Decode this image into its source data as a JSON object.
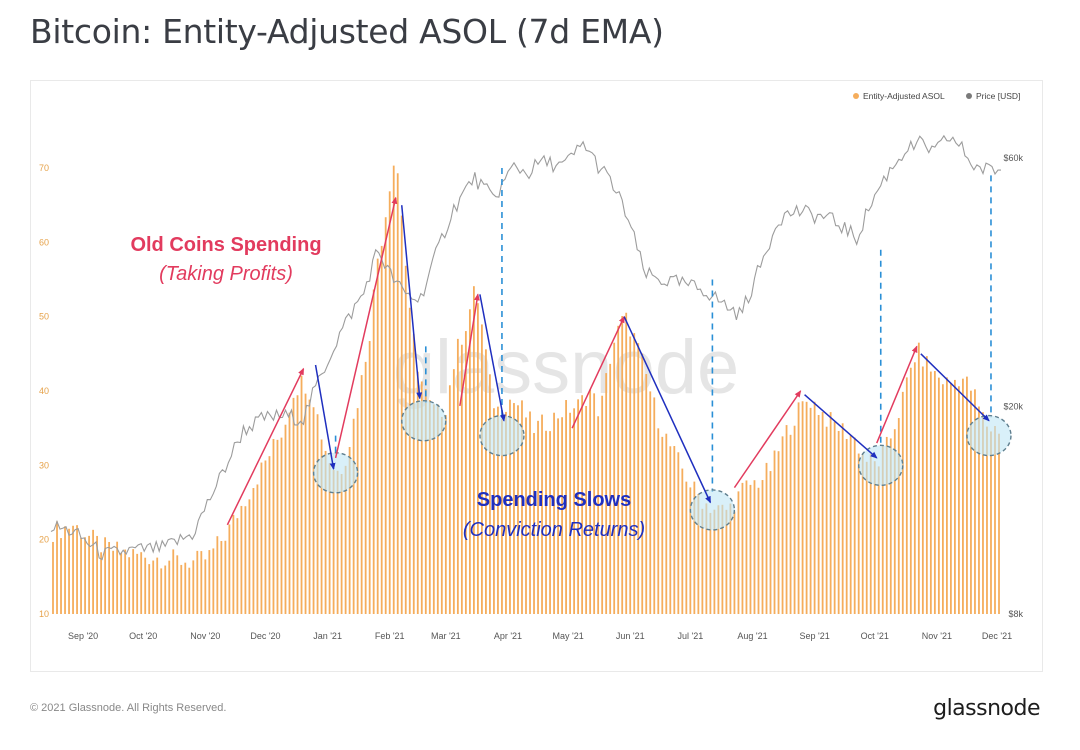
{
  "header": {
    "title": "Bitcoin: Entity-Adjusted ASOL (7d EMA)"
  },
  "footer": {
    "copyright": "© 2021 Glassnode. All Rights Reserved.",
    "logo": "glassnode"
  },
  "watermark": "glassnode",
  "colors": {
    "asol": "#f5ad5c",
    "price": "#9c9c9c",
    "up_arrow": "#e23b5e",
    "down_arrow": "#1f2fbf",
    "circle_fill": "#bfe6f5",
    "circle_stroke": "#5f7f8f",
    "dashed": "#2a8fd6",
    "red_text": "#e23b5e",
    "blue_text": "#1f2fbf"
  },
  "annotations": {
    "old_coins_title": "Old Coins Spending",
    "old_coins_sub": "(Taking Profits)",
    "spending_slows_title": "Spending Slows",
    "spending_slows_sub": "(Conviction Returns)"
  },
  "chart_data": {
    "type": "bar",
    "title": "Bitcoin: Entity-Adjusted ASOL (7d EMA)",
    "legend": [
      {
        "name": "Entity-Adjusted ASOL",
        "color": "#f5ad5c"
      },
      {
        "name": "Price [USD]",
        "color": "#7a7a7a"
      }
    ],
    "legend_position": "top-right",
    "x_ticks": [
      "Sep '20",
      "Oct '20",
      "Nov '20",
      "Dec '20",
      "Jan '21",
      "Feb '21",
      "Mar '21",
      "Apr '21",
      "May '21",
      "Jun '21",
      "Jul '21",
      "Aug '21",
      "Sep '21",
      "Oct '21",
      "Nov '21",
      "Dec '21"
    ],
    "x_range_days": [
      -16,
      458
    ],
    "y_left_ticks": [
      "10",
      "20",
      "30",
      "40",
      "50",
      "60",
      "70"
    ],
    "y_left_range": [
      10,
      75
    ],
    "y_right_ticks": [
      "$8k",
      "$20k",
      "$60k"
    ],
    "y_right_scale": "log",
    "grid": false,
    "asol_keypoints": [
      [
        -16,
        21
      ],
      [
        -5,
        22
      ],
      [
        10,
        19
      ],
      [
        25,
        18
      ],
      [
        40,
        17.5
      ],
      [
        55,
        17
      ],
      [
        62,
        17.5
      ],
      [
        72,
        21
      ],
      [
        80,
        25
      ],
      [
        90,
        30
      ],
      [
        100,
        35
      ],
      [
        105,
        40
      ],
      [
        110,
        41.5
      ],
      [
        115,
        39
      ],
      [
        120,
        33
      ],
      [
        124,
        30
      ],
      [
        128,
        29
      ],
      [
        132,
        32
      ],
      [
        138,
        40
      ],
      [
        143,
        48
      ],
      [
        147,
        58
      ],
      [
        150,
        62
      ],
      [
        153,
        68
      ],
      [
        156,
        72
      ],
      [
        159,
        64
      ],
      [
        163,
        50
      ],
      [
        168,
        42
      ],
      [
        173,
        38
      ],
      [
        177,
        37
      ],
      [
        181,
        38
      ],
      [
        186,
        45
      ],
      [
        191,
        49
      ],
      [
        196,
        54
      ],
      [
        200,
        47
      ],
      [
        204,
        39
      ],
      [
        208,
        37
      ],
      [
        212,
        39
      ],
      [
        218,
        38
      ],
      [
        225,
        35
      ],
      [
        233,
        36
      ],
      [
        240,
        37.5
      ],
      [
        247,
        38
      ],
      [
        253,
        40
      ],
      [
        258,
        37
      ],
      [
        264,
        46
      ],
      [
        270,
        50
      ],
      [
        274,
        48
      ],
      [
        280,
        43
      ],
      [
        286,
        37
      ],
      [
        292,
        33
      ],
      [
        298,
        30
      ],
      [
        304,
        27
      ],
      [
        310,
        25
      ],
      [
        316,
        24
      ],
      [
        322,
        24
      ],
      [
        330,
        27
      ],
      [
        338,
        28
      ],
      [
        344,
        30
      ],
      [
        350,
        34
      ],
      [
        356,
        37
      ],
      [
        362,
        39
      ],
      [
        366,
        38
      ],
      [
        372,
        36
      ],
      [
        378,
        35
      ],
      [
        384,
        34
      ],
      [
        390,
        31
      ],
      [
        396,
        30
      ],
      [
        402,
        33
      ],
      [
        408,
        38
      ],
      [
        412,
        42
      ],
      [
        416,
        45.5
      ],
      [
        420,
        44
      ],
      [
        426,
        42
      ],
      [
        432,
        41
      ],
      [
        438,
        42
      ],
      [
        444,
        40
      ],
      [
        448,
        37
      ],
      [
        452,
        35
      ],
      [
        458,
        35
      ]
    ],
    "price_keypoints_usd": [
      [
        -16,
        11800
      ],
      [
        -5,
        11500
      ],
      [
        10,
        10400
      ],
      [
        25,
        10600
      ],
      [
        40,
        10700
      ],
      [
        55,
        11400
      ],
      [
        62,
        13000
      ],
      [
        70,
        15000
      ],
      [
        80,
        18000
      ],
      [
        90,
        19000
      ],
      [
        100,
        19200
      ],
      [
        110,
        19000
      ],
      [
        120,
        23500
      ],
      [
        130,
        28500
      ],
      [
        140,
        33000
      ],
      [
        147,
        40000
      ],
      [
        153,
        36000
      ],
      [
        160,
        33000
      ],
      [
        168,
        32000
      ],
      [
        175,
        38000
      ],
      [
        185,
        48000
      ],
      [
        195,
        55000
      ],
      [
        205,
        50000
      ],
      [
        215,
        58000
      ],
      [
        222,
        56000
      ],
      [
        228,
        59000
      ],
      [
        240,
        58000
      ],
      [
        250,
        64000
      ],
      [
        257,
        58000
      ],
      [
        262,
        55000
      ],
      [
        270,
        48000
      ],
      [
        275,
        42000
      ],
      [
        280,
        36000
      ],
      [
        288,
        35000
      ],
      [
        298,
        34500
      ],
      [
        310,
        33500
      ],
      [
        322,
        31000
      ],
      [
        328,
        30000
      ],
      [
        334,
        34000
      ],
      [
        340,
        39000
      ],
      [
        347,
        46000
      ],
      [
        356,
        47500
      ],
      [
        366,
        46500
      ],
      [
        372,
        46000
      ],
      [
        380,
        44000
      ],
      [
        386,
        42000
      ],
      [
        392,
        48000
      ],
      [
        400,
        55000
      ],
      [
        410,
        62000
      ],
      [
        418,
        64000
      ],
      [
        425,
        61500
      ],
      [
        432,
        66000
      ],
      [
        438,
        63000
      ],
      [
        444,
        58000
      ],
      [
        450,
        57000
      ],
      [
        458,
        57000
      ]
    ],
    "up_arrows_days": [
      [
        72,
        22
      ],
      [
        110,
        43
      ],
      [
        126,
        31
      ],
      [
        156,
        66
      ],
      [
        188,
        38
      ],
      [
        197,
        53
      ],
      [
        244,
        35
      ],
      [
        270,
        50
      ],
      [
        325,
        27
      ],
      [
        358,
        40
      ],
      [
        396,
        33
      ],
      [
        416,
        46
      ]
    ],
    "down_arrows_days": [
      [
        116,
        43.5,
        125,
        29.5
      ],
      [
        159,
        65,
        168,
        39
      ],
      [
        198,
        53,
        210,
        36
      ],
      [
        270,
        50,
        313,
        25
      ],
      [
        360,
        39.5,
        396,
        31
      ],
      [
        418,
        45,
        452,
        36
      ]
    ],
    "highlight_circles_days": [
      [
        126,
        29
      ],
      [
        170,
        36
      ],
      [
        209,
        34
      ],
      [
        314,
        24
      ],
      [
        398,
        30
      ],
      [
        452,
        34
      ]
    ],
    "dashed_lines_days": [
      [
        126,
        34
      ],
      [
        171,
        46
      ],
      [
        209,
        70
      ],
      [
        314,
        55
      ],
      [
        398,
        59
      ],
      [
        453,
        69
      ]
    ]
  }
}
